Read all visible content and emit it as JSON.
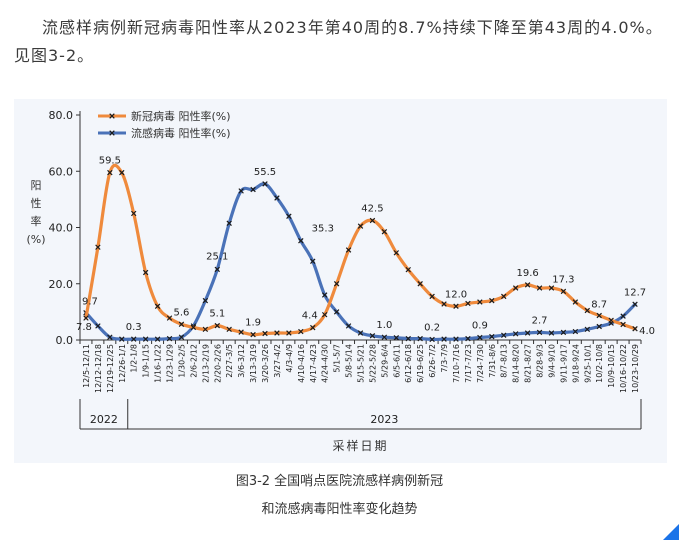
{
  "intro_text": "流感样病例新冠病毒阳性率从2023年第40周的8.7%持续下降至第43周的4.0%。见图3-2。",
  "caption_line1": "图3-2 全国哨点医院流感样病例新冠",
  "caption_line2": "和流感病毒阳性率变化趋势",
  "chart_data": {
    "type": "line",
    "xlabel": "采样日期",
    "ylabel": "阳性率(%)",
    "ylim": [
      0,
      80
    ],
    "yticks": [
      "0.0",
      "20.0",
      "40.0",
      "60.0",
      "80.0"
    ],
    "legend_position": "top-left",
    "grid": false,
    "categories": [
      "12/5-12/11",
      "12/12-12/18",
      "12/19-12/25",
      "12/26-1/1",
      "1/2-1/8",
      "1/9-1/15",
      "1/16-1/22",
      "1/23-1/29",
      "1/30-2/5",
      "2/6-2/12",
      "2/13-2/19",
      "2/20-2/26",
      "2/27-3/5",
      "3/6-3/12",
      "3/13-3/19",
      "3/20-3/26",
      "3/27-4/2",
      "4/3-4/9",
      "4/10-4/16",
      "4/17-4/23",
      "4/24-4/30",
      "5/1-5/7",
      "5/8-5/14",
      "5/15-5/21",
      "5/22-5/28",
      "5/29-6/4",
      "6/5-6/11",
      "6/12-6/18",
      "6/19-6/25",
      "6/26-7/2",
      "7/3-7/9",
      "7/10-7/16",
      "7/17-7/23",
      "7/24-7/30",
      "7/31-8/6",
      "8/7-8/13",
      "8/14-8/20",
      "8/21-8/27",
      "8/28-9/3",
      "9/4-9/10",
      "9/11-9/17",
      "9/18-9/24",
      "9/25-10/1",
      "10/2-10/8",
      "10/9-10/15",
      "10/16-10/22",
      "10/23-10/29"
    ],
    "tick_labels": [
      "12/5-12/11",
      "12/12-12/18",
      "12/19-12/25",
      "12/26-1/1",
      "1/2-1/8",
      "1/9-1/15",
      "1/16-1/22",
      "1/23-1/29",
      "1/30-2/5",
      "2/6-2/12",
      "2/13-2/19",
      "2/20-2/26",
      "2/27-3/5",
      "3/6-3/12",
      "3/13-3/19",
      "3/20-3/26",
      "3/27-4/2",
      "4/3-4/9",
      "4/10-4/16",
      "4/17-4/23",
      "4/24-4/30",
      "5/1-5/7",
      "5/8-5/14",
      "5/15-5/21",
      "5/22-5/28",
      "5/29-6/4",
      "6/5-6/11",
      "6/12-6/18",
      "6/19-6/25",
      "6/26-7/2",
      "7/3-7/9",
      "7/10-7/16",
      "7/17-7/23",
      "7/24-7/30",
      "7/31-8/6",
      "8/7-8/13",
      "8/14-8/20",
      "8/21-8/27",
      "8/28-9/3",
      "9/4-9/10",
      "9/11-9/17",
      "9/18-9/24",
      "9/25-10/1",
      "10/2-10/8",
      "10/9-10/15",
      "10/16-10/22",
      "10/23-10/29"
    ],
    "year_groups": [
      {
        "label": "2022",
        "start": 0,
        "end": 3
      },
      {
        "label": "2023",
        "start": 4,
        "end": 46
      }
    ],
    "series": [
      {
        "name": "新冠病毒 阳性率(%)",
        "color": "#ef8a3c",
        "values": [
          7.8,
          33,
          59.5,
          59.5,
          45,
          24,
          12,
          7.8,
          5.6,
          4.5,
          3.8,
          5.1,
          3.8,
          2.8,
          1.9,
          2.3,
          2.5,
          2.5,
          3.0,
          4.4,
          9,
          20,
          32,
          40.5,
          42.5,
          38.5,
          31,
          25,
          20,
          15.5,
          12.8,
          12.0,
          13,
          13.5,
          14,
          15.5,
          18.5,
          19.6,
          18.5,
          18.5,
          17.3,
          13.5,
          10.5,
          8.7,
          7.0,
          5.5,
          4.0
        ],
        "labels": {
          "0": "7.8",
          "2": "59.5",
          "8": "5.6",
          "11": "5.1",
          "14": "1.9",
          "19": "4.4",
          "24": "42.5",
          "31": "12.0",
          "37": "19.6",
          "40": "17.3",
          "43": "8.7",
          "46": "4.0"
        }
      },
      {
        "name": "流感病毒 阳性率(%)",
        "color": "#4a72b8",
        "values": [
          9.7,
          5,
          1,
          0.3,
          0.3,
          0.3,
          0.3,
          0.5,
          1,
          5,
          14,
          25.1,
          41.5,
          53,
          53.5,
          55.5,
          50.5,
          44,
          35.3,
          28,
          16,
          10,
          5,
          2.5,
          1.5,
          1.0,
          0.8,
          0.5,
          0.5,
          0.2,
          0.3,
          0.3,
          0.5,
          0.9,
          1.2,
          1.7,
          2.2,
          2.5,
          2.7,
          2.5,
          2.7,
          3.0,
          3.8,
          4.8,
          6.0,
          8.5,
          12.7
        ],
        "labels": {
          "0": "9.7",
          "4": "0.3",
          "11": "25.1",
          "15": "55.5",
          "18": "35.3",
          "25": "1.0",
          "29": "0.2",
          "33": "0.9",
          "38": "2.7",
          "46": "12.7"
        }
      }
    ]
  }
}
